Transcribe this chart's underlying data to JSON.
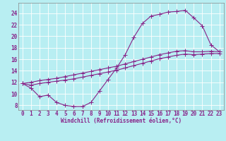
{
  "bg_color": "#b8eef2",
  "grid_color": "#c8eef2",
  "line_color": "#882288",
  "xlabel": "Windchill (Refroidissement éolien,°C)",
  "xlim": [
    -0.5,
    23.5
  ],
  "ylim": [
    7.2,
    25.8
  ],
  "xticks": [
    0,
    1,
    2,
    3,
    4,
    5,
    6,
    7,
    8,
    9,
    10,
    11,
    12,
    13,
    14,
    15,
    16,
    17,
    18,
    19,
    20,
    21,
    22,
    23
  ],
  "yticks": [
    8,
    10,
    12,
    14,
    16,
    18,
    20,
    22,
    24
  ],
  "curve1_x": [
    0,
    1,
    2,
    3,
    4,
    5,
    6,
    7,
    8,
    9,
    10,
    11,
    12,
    13,
    14,
    15,
    16,
    17,
    18,
    19,
    20,
    21,
    22,
    23
  ],
  "curve1_y": [
    11.8,
    11.0,
    9.5,
    9.8,
    8.5,
    8.0,
    7.8,
    7.8,
    8.5,
    10.5,
    12.5,
    14.5,
    16.8,
    19.8,
    22.2,
    23.5,
    23.8,
    24.2,
    24.3,
    24.5,
    23.2,
    21.8,
    18.5,
    17.3
  ],
  "curve2_x": [
    0,
    1,
    2,
    3,
    4,
    5,
    6,
    7,
    8,
    9,
    10,
    11,
    12,
    13,
    14,
    15,
    16,
    17,
    18,
    19,
    20,
    21,
    22,
    23
  ],
  "curve2_y": [
    11.8,
    12.0,
    12.3,
    12.5,
    12.7,
    13.0,
    13.3,
    13.6,
    13.9,
    14.2,
    14.5,
    14.8,
    15.2,
    15.6,
    16.0,
    16.4,
    16.8,
    17.1,
    17.4,
    17.5,
    17.3,
    17.3,
    17.4,
    17.3
  ],
  "curve3_x": [
    0,
    1,
    2,
    3,
    4,
    5,
    6,
    7,
    8,
    9,
    10,
    11,
    12,
    13,
    14,
    15,
    16,
    17,
    18,
    19,
    20,
    21,
    22,
    23
  ],
  "curve3_y": [
    11.8,
    11.5,
    11.8,
    12.0,
    12.2,
    12.4,
    12.6,
    12.9,
    13.2,
    13.5,
    13.8,
    14.1,
    14.5,
    14.9,
    15.3,
    15.7,
    16.1,
    16.4,
    16.7,
    16.9,
    16.8,
    16.9,
    17.0,
    17.0
  ],
  "font_size_xlabel": 5.5,
  "font_size_ticks": 5.5,
  "marker_size": 2.2,
  "line_width": 0.8
}
